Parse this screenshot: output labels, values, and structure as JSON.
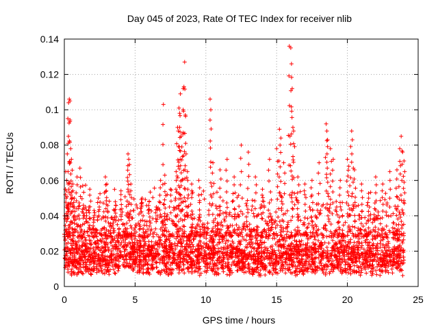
{
  "chart_data": {
    "type": "scatter",
    "title": "Day 045 of 2023, Rate Of TEC Index for receiver nlib",
    "xlabel": "GPS time / hours",
    "ylabel": "ROTI / TECUs",
    "xlim": [
      0,
      25
    ],
    "ylim": [
      0,
      0.14
    ],
    "x_ticks": [
      "0",
      "5",
      "10",
      "15",
      "20",
      "25"
    ],
    "x_tick_values": [
      0,
      5,
      10,
      15,
      20,
      25
    ],
    "y_ticks": [
      "0",
      "0.02",
      "0.04",
      "0.06",
      "0.08",
      "0.1",
      "0.12",
      "0.14"
    ],
    "y_tick_values": [
      0,
      0.02,
      0.04,
      0.06,
      0.08,
      0.1,
      0.12,
      0.14
    ],
    "grid": true,
    "marker": "plus",
    "color": "#ff0000",
    "series": [
      {
        "name": "ROTI",
        "points": [
          [
            0.1,
            0.065
          ],
          [
            0.15,
            0.054
          ],
          [
            0.2,
            0.046
          ],
          [
            0.25,
            0.095
          ],
          [
            0.3,
            0.104
          ],
          [
            0.35,
            0.106
          ],
          [
            0.4,
            0.105
          ],
          [
            0.45,
            0.078
          ],
          [
            0.5,
            0.072
          ],
          [
            0.6,
            0.058
          ],
          [
            0.7,
            0.05
          ],
          [
            0.9,
            0.062
          ],
          [
            1.1,
            0.067
          ],
          [
            1.3,
            0.057
          ],
          [
            1.5,
            0.045
          ],
          [
            1.8,
            0.055
          ],
          [
            2.1,
            0.043
          ],
          [
            2.4,
            0.05
          ],
          [
            2.9,
            0.062
          ],
          [
            3.0,
            0.058
          ],
          [
            3.6,
            0.048
          ],
          [
            4.0,
            0.052
          ],
          [
            4.5,
            0.075
          ],
          [
            4.55,
            0.072
          ],
          [
            4.6,
            0.069
          ],
          [
            4.7,
            0.058
          ],
          [
            5.5,
            0.05
          ],
          [
            6.0,
            0.048
          ],
          [
            6.5,
            0.045
          ],
          [
            6.8,
            0.06
          ],
          [
            7.0,
            0.103
          ],
          [
            7.1,
            0.063
          ],
          [
            7.5,
            0.055
          ],
          [
            7.9,
            0.065
          ],
          [
            8.0,
            0.09
          ],
          [
            8.05,
            0.088
          ],
          [
            8.1,
            0.101
          ],
          [
            8.15,
            0.098
          ],
          [
            8.2,
            0.109
          ],
          [
            8.25,
            0.085
          ],
          [
            8.3,
            0.079
          ],
          [
            8.4,
            0.112
          ],
          [
            8.45,
            0.113
          ],
          [
            8.5,
            0.127
          ],
          [
            8.55,
            0.097
          ],
          [
            8.6,
            0.075
          ],
          [
            8.7,
            0.065
          ],
          [
            9.0,
            0.058
          ],
          [
            9.5,
            0.06
          ],
          [
            10.3,
            0.106
          ],
          [
            10.35,
            0.1
          ],
          [
            10.5,
            0.07
          ],
          [
            11.0,
            0.066
          ],
          [
            11.5,
            0.072
          ],
          [
            12.0,
            0.062
          ],
          [
            12.5,
            0.08
          ],
          [
            13.0,
            0.076
          ],
          [
            13.5,
            0.062
          ],
          [
            14.0,
            0.055
          ],
          [
            14.5,
            0.072
          ],
          [
            15.0,
            0.078
          ],
          [
            15.2,
            0.089
          ],
          [
            15.3,
            0.084
          ],
          [
            15.5,
            0.07
          ],
          [
            15.9,
            0.136
          ],
          [
            16.0,
            0.135
          ],
          [
            16.05,
            0.126
          ],
          [
            16.1,
            0.112
          ],
          [
            16.15,
            0.09
          ],
          [
            16.2,
            0.088
          ],
          [
            16.5,
            0.062
          ],
          [
            17.0,
            0.058
          ],
          [
            17.5,
            0.06
          ],
          [
            18.0,
            0.07
          ],
          [
            18.5,
            0.092
          ],
          [
            18.55,
            0.088
          ],
          [
            18.6,
            0.083
          ],
          [
            18.8,
            0.078
          ],
          [
            19.0,
            0.072
          ],
          [
            19.5,
            0.06
          ],
          [
            20.0,
            0.072
          ],
          [
            20.1,
            0.068
          ],
          [
            20.3,
            0.088
          ],
          [
            20.35,
            0.083
          ],
          [
            20.5,
            0.066
          ],
          [
            21.0,
            0.058
          ],
          [
            21.5,
            0.05
          ],
          [
            22.0,
            0.062
          ],
          [
            22.5,
            0.058
          ],
          [
            23.0,
            0.065
          ],
          [
            23.5,
            0.066
          ],
          [
            23.7,
            0.078
          ],
          [
            23.8,
            0.085
          ],
          [
            23.9,
            0.076
          ],
          [
            24.0,
            0.071
          ]
        ],
        "baseline_band": [
          0.006,
          0.032
        ],
        "baseline_x_range": [
          0,
          24
        ]
      }
    ]
  }
}
